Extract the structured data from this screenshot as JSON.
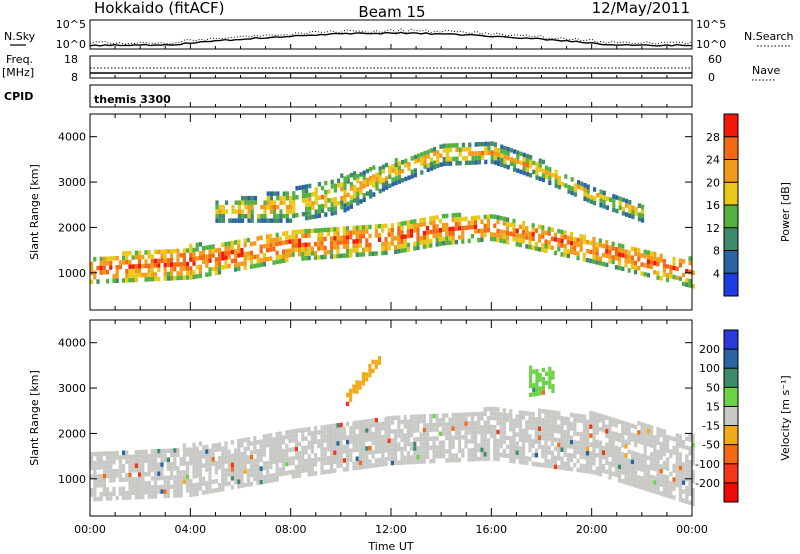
{
  "header": {
    "site": "Hokkaido (fitACF)",
    "beam": "Beam 15",
    "date": "12/May/2011"
  },
  "strips": {
    "nsky_label": "N.Sky",
    "nsearch_label": "N.Search",
    "noise_ticks": [
      "10^5",
      "10^0"
    ],
    "freq_label": "Freq.",
    "freq_unit": "[MHz]",
    "freq_ticks": [
      "18",
      "8"
    ],
    "nave_label": "Nave",
    "nave_ticks": [
      "60",
      "0"
    ],
    "cpid_label": "CPID",
    "cpid_value": "themis 3300"
  },
  "chart_data": [
    {
      "type": "heatmap",
      "panel": "power",
      "ylabel": "Slant Range [km]",
      "xlabel": "",
      "x_ticks": [
        "00:00",
        "04:00",
        "08:00",
        "12:00",
        "16:00",
        "20:00",
        "00:00"
      ],
      "xlim_hours": [
        0,
        24
      ],
      "y_ticks": [
        1000,
        2000,
        3000,
        4000
      ],
      "ylim": [
        180,
        4500
      ],
      "colorbar": {
        "label": "Power [dB]",
        "ticks": [
          4,
          8,
          12,
          16,
          20,
          24,
          28
        ],
        "range": [
          0,
          32
        ],
        "colors": [
          "#1e3ce6",
          "#2c63a3",
          "#3f8a6a",
          "#55b040",
          "#e8c81a",
          "#f39c1c",
          "#f46a14",
          "#ef1a0a"
        ]
      },
      "regions": [
        {
          "desc": "main band",
          "x": [
            0,
            4,
            8,
            12,
            14,
            16,
            20,
            24
          ],
          "y_lo": [
            750,
            850,
            1250,
            1400,
            1600,
            1700,
            1200,
            650
          ],
          "y_hi": [
            1300,
            1550,
            1900,
            2050,
            2250,
            2200,
            1750,
            1250
          ],
          "db": 28
        },
        {
          "desc": "upper arc",
          "x": [
            5,
            8,
            10,
            12,
            14,
            16,
            18,
            20,
            22
          ],
          "y_lo": [
            2100,
            2100,
            2300,
            2900,
            3350,
            3400,
            3000,
            2500,
            2100
          ],
          "y_hi": [
            2500,
            2800,
            3100,
            3400,
            3800,
            3800,
            3400,
            2800,
            2400
          ],
          "db": 22
        }
      ]
    },
    {
      "type": "heatmap",
      "panel": "velocity",
      "ylabel": "Slant Range [km]",
      "xlabel": "Time UT",
      "x_ticks": [
        "00:00",
        "04:00",
        "08:00",
        "12:00",
        "16:00",
        "20:00",
        "00:00"
      ],
      "xlim_hours": [
        0,
        24
      ],
      "y_ticks": [
        1000,
        2000,
        3000,
        4000
      ],
      "ylim": [
        180,
        4500
      ],
      "colorbar": {
        "label": "Velocity [m s⁻¹]",
        "ticks": [
          "200",
          "100",
          "50",
          "15",
          "-15",
          "-50",
          "-100",
          "-200"
        ],
        "colors": [
          "#2a3ad6",
          "#2c63a3",
          "#3f8a6a",
          "#6bd24a",
          "#c8c8c4",
          "#f3a91d",
          "#f46a14",
          "#f2361a",
          "#ef0a0a"
        ]
      },
      "regions": [
        {
          "desc": "ground scatter",
          "x": [
            0,
            4,
            8,
            12,
            16,
            20,
            24
          ],
          "y_lo": [
            500,
            600,
            1000,
            1300,
            1400,
            1100,
            400
          ],
          "y_hi": [
            1500,
            1700,
            2000,
            2300,
            2500,
            2400,
            1900
          ],
          "vel": 0
        },
        {
          "desc": "negative streak",
          "x": [
            10.2,
            11.6
          ],
          "y_lo": [
            2600,
            3600
          ],
          "y_hi": [
            2800,
            3800
          ],
          "vel": -40
        },
        {
          "desc": "positive patch",
          "x": [
            17.5,
            18.5
          ],
          "y_lo": [
            2800,
            2900
          ],
          "y_hi": [
            3400,
            3400
          ],
          "vel": 30
        }
      ]
    }
  ]
}
